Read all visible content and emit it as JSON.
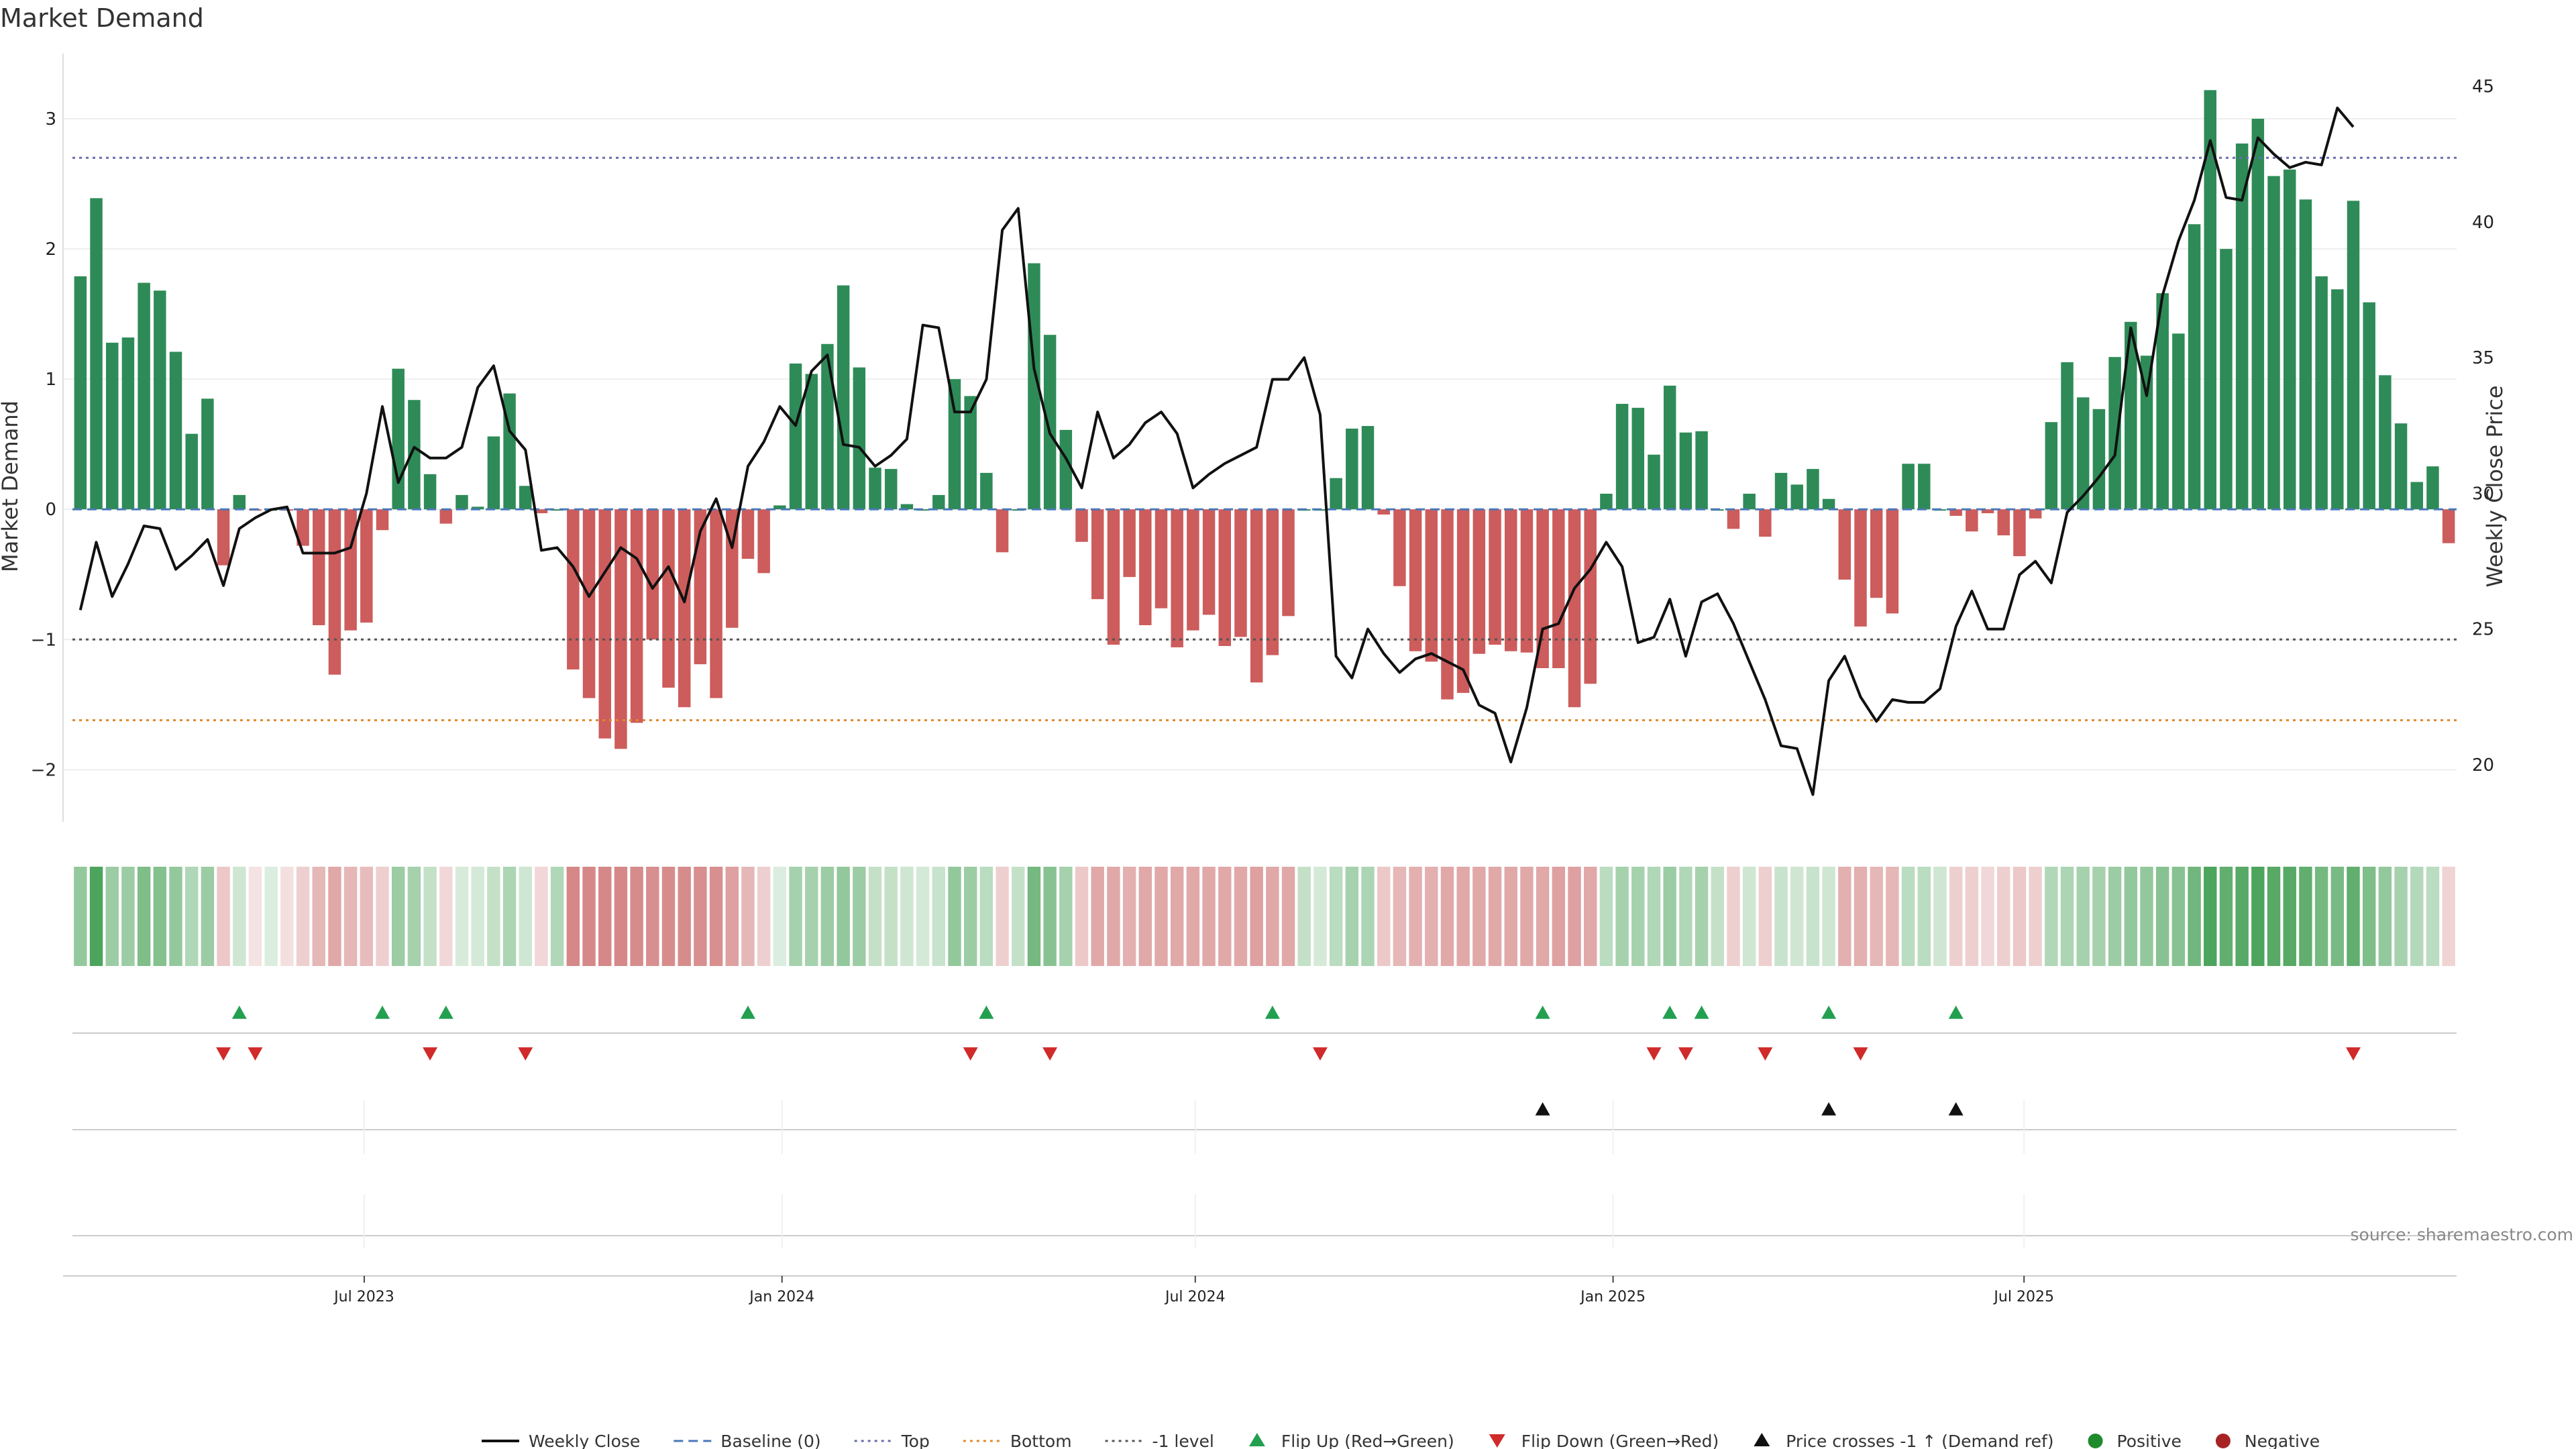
{
  "chart_data": {
    "type": "bar",
    "title": "Market Demand",
    "ylabel": "Market Demand",
    "y2label": "Weekly Close Price",
    "ylim": [
      -2.4,
      3.5
    ],
    "y2lim": [
      17.9,
      46.2
    ],
    "yticks": [
      -2,
      -1,
      0,
      1,
      2,
      3
    ],
    "y2ticks": [
      20,
      25,
      30,
      35,
      40,
      45
    ],
    "levels": {
      "top": 2.7,
      "bottom": -1.62,
      "minus_one": -1,
      "baseline": 0
    },
    "x_start": "2023-02-26",
    "x_step_days": 7,
    "x_ticks": [
      {
        "date": "2023-07-01",
        "label": "Jul 2023"
      },
      {
        "date": "2024-01-01",
        "label": "Jan 2024"
      },
      {
        "date": "2024-07-01",
        "label": "Jul 2024"
      },
      {
        "date": "2025-01-01",
        "label": "Jan 2025"
      },
      {
        "date": "2025-07-01",
        "label": "Jul 2025"
      }
    ],
    "series": [
      {
        "name": "Market Demand",
        "values": [
          1.79,
          2.39,
          1.28,
          1.32,
          1.74,
          1.68,
          1.21,
          0.58,
          0.85,
          -0.43,
          0.11,
          -0.01,
          0.0,
          -0.01,
          -0.28,
          -0.89,
          -1.27,
          -0.93,
          -0.87,
          -0.16,
          1.08,
          0.84,
          0.27,
          -0.11,
          0.11,
          0.02,
          0.56,
          0.89,
          0.18,
          -0.03,
          0.0,
          -1.23,
          -1.45,
          -1.76,
          -1.84,
          -1.64,
          -1.0,
          -1.37,
          -1.52,
          -1.19,
          -1.45,
          -0.91,
          -0.38,
          -0.49,
          0.03,
          1.12,
          1.04,
          1.27,
          1.72,
          1.09,
          0.32,
          0.31,
          0.04,
          0.0,
          0.11,
          1.0,
          0.87,
          0.28,
          -0.33,
          0.0,
          1.89,
          1.34,
          0.61,
          -0.25,
          -0.69,
          -1.04,
          -0.52,
          -0.89,
          -0.76,
          -1.06,
          -0.93,
          -0.81,
          -1.05,
          -0.98,
          -1.33,
          -1.12,
          -0.82,
          0.0,
          0.0,
          0.24,
          0.62,
          0.64,
          -0.04,
          -0.59,
          -1.09,
          -1.17,
          -1.46,
          -1.41,
          -1.11,
          -1.04,
          -1.09,
          -1.1,
          -1.22,
          -1.22,
          -1.52,
          -1.34,
          0.12,
          0.81,
          0.78,
          0.42,
          0.95,
          0.59,
          0.6,
          0.0,
          -0.15,
          0.12,
          -0.21,
          0.28,
          0.19,
          0.31,
          0.08,
          -0.54,
          -0.9,
          -0.68,
          -0.8,
          0.35,
          0.35,
          0.0,
          -0.05,
          -0.17,
          -0.03,
          -0.2,
          -0.36,
          -0.07,
          0.67,
          1.13,
          0.86,
          0.77,
          1.17,
          1.44,
          1.18,
          1.66,
          1.35,
          2.19,
          3.22,
          2.0,
          2.81,
          3.0,
          2.56,
          2.61,
          2.38,
          1.79,
          1.69,
          2.37,
          1.59,
          1.03,
          0.66,
          0.21,
          0.33,
          -0.26
        ]
      },
      {
        "name": "Weekly Close",
        "values": [
          25.7,
          28.2,
          26.2,
          27.4,
          28.8,
          28.7,
          27.2,
          27.7,
          28.3,
          26.6,
          28.7,
          29.1,
          29.4,
          29.5,
          27.8,
          27.8,
          27.8,
          28.0,
          30.0,
          33.2,
          30.4,
          31.7,
          31.3,
          31.3,
          31.7,
          33.9,
          34.7,
          32.3,
          31.6,
          27.9,
          28.0,
          27.3,
          26.2,
          27.1,
          28.0,
          27.6,
          26.5,
          27.3,
          26.0,
          28.6,
          29.8,
          28.0,
          31.0,
          31.9,
          33.2,
          32.5,
          34.5,
          35.1,
          31.8,
          31.7,
          31.0,
          31.4,
          32.0,
          36.2,
          36.1,
          33.0,
          33.0,
          34.2,
          39.7,
          40.5,
          34.6,
          32.2,
          31.3,
          30.2,
          33.0,
          31.3,
          31.8,
          32.6,
          33.0,
          32.2,
          30.2,
          30.7,
          31.1,
          31.4,
          31.7,
          34.2,
          34.2,
          35.0,
          32.9,
          24.0,
          23.2,
          25.0,
          24.1,
          23.4,
          23.9,
          24.1,
          23.8,
          23.5,
          22.2,
          21.9,
          20.1,
          22.1,
          25.0,
          25.2,
          26.5,
          27.2,
          28.2,
          27.3,
          24.5,
          24.7,
          26.1,
          24.0,
          26.0,
          26.3,
          25.2,
          23.8,
          22.4,
          20.7,
          20.6,
          18.9,
          23.1,
          24.0,
          22.5,
          21.6,
          22.4,
          22.3,
          22.3,
          22.8,
          25.1,
          26.4,
          25.0,
          25.0,
          27.0,
          27.5,
          26.7,
          29.3,
          29.9,
          30.6,
          31.4,
          36.1,
          33.6,
          37.3,
          39.3,
          40.8,
          43.0,
          40.9,
          40.8,
          43.1,
          42.5,
          42.0,
          42.2,
          42.1,
          44.2,
          43.5
        ]
      }
    ],
    "regime_strip": [
      0.55,
      0.9,
      0.5,
      0.5,
      0.65,
      0.62,
      0.55,
      0.4,
      0.5,
      0.35,
      0.25,
      0.18,
      0.18,
      0.2,
      0.3,
      0.45,
      0.55,
      0.45,
      0.42,
      0.3,
      0.5,
      0.45,
      0.3,
      0.25,
      0.2,
      0.22,
      0.3,
      0.42,
      0.25,
      0.25,
      0.4,
      0.75,
      0.75,
      0.75,
      0.75,
      0.72,
      0.7,
      0.72,
      0.72,
      0.7,
      0.7,
      0.6,
      0.45,
      0.3,
      0.18,
      0.45,
      0.45,
      0.5,
      0.55,
      0.5,
      0.3,
      0.3,
      0.25,
      0.22,
      0.28,
      0.55,
      0.5,
      0.35,
      0.3,
      0.3,
      0.7,
      0.6,
      0.45,
      0.35,
      0.55,
      0.55,
      0.5,
      0.55,
      0.55,
      0.55,
      0.55,
      0.55,
      0.55,
      0.55,
      0.6,
      0.55,
      0.55,
      0.3,
      0.22,
      0.35,
      0.45,
      0.42,
      0.35,
      0.45,
      0.5,
      0.5,
      0.55,
      0.55,
      0.55,
      0.55,
      0.55,
      0.55,
      0.55,
      0.6,
      0.6,
      0.55,
      0.35,
      0.45,
      0.45,
      0.4,
      0.5,
      0.4,
      0.45,
      0.3,
      0.3,
      0.25,
      0.3,
      0.28,
      0.25,
      0.28,
      0.25,
      0.5,
      0.5,
      0.45,
      0.45,
      0.35,
      0.35,
      0.25,
      0.3,
      0.3,
      0.25,
      0.3,
      0.35,
      0.3,
      0.4,
      0.42,
      0.45,
      0.45,
      0.5,
      0.55,
      0.55,
      0.6,
      0.6,
      0.72,
      0.9,
      0.8,
      0.85,
      0.9,
      0.85,
      0.85,
      0.8,
      0.7,
      0.68,
      0.8,
      0.65,
      0.55,
      0.45,
      0.38,
      0.35,
      0.28
    ],
    "flip_up_indices": [
      10,
      19,
      23,
      42,
      57,
      75,
      92,
      100,
      102,
      110,
      118
    ],
    "flip_down_indices": [
      9,
      11,
      22,
      28,
      56,
      61,
      78,
      99,
      101,
      106,
      112,
      143
    ],
    "price_cross_indices": [
      92,
      110,
      118
    ],
    "legend": [
      {
        "label": "Weekly Close",
        "kind": "line",
        "color": "#111111"
      },
      {
        "label": "Baseline (0)",
        "kind": "dash",
        "color": "#4a78b8"
      },
      {
        "label": "Top",
        "kind": "dot",
        "color": "#6b6bb0"
      },
      {
        "label": "Bottom",
        "kind": "dot",
        "color": "#e0882e"
      },
      {
        "label": "-1 level",
        "kind": "dot",
        "color": "#555555"
      },
      {
        "label": "Flip Up (Red→Green)",
        "kind": "tri-up",
        "color": "#22a050"
      },
      {
        "label": "Flip Down (Green→Red)",
        "kind": "tri-down",
        "color": "#d02a2a"
      },
      {
        "label": "Price crosses -1 ↑ (Demand ref)",
        "kind": "tri-up",
        "color": "#111111"
      },
      {
        "label": "Positive",
        "kind": "circle",
        "color": "#1f8a2e"
      },
      {
        "label": "Negative",
        "kind": "circle",
        "color": "#a82424"
      }
    ],
    "source": "source: sharemaestro.com"
  },
  "colors": {
    "positive_bar": "#2e8b57",
    "negative_bar": "#cd5c5c",
    "price_line": "#111111",
    "strip_green": "#3a9a4a",
    "strip_red": "#c86060",
    "flip_up": "#22a050",
    "flip_down": "#d02a2a",
    "price_cross": "#111111"
  }
}
